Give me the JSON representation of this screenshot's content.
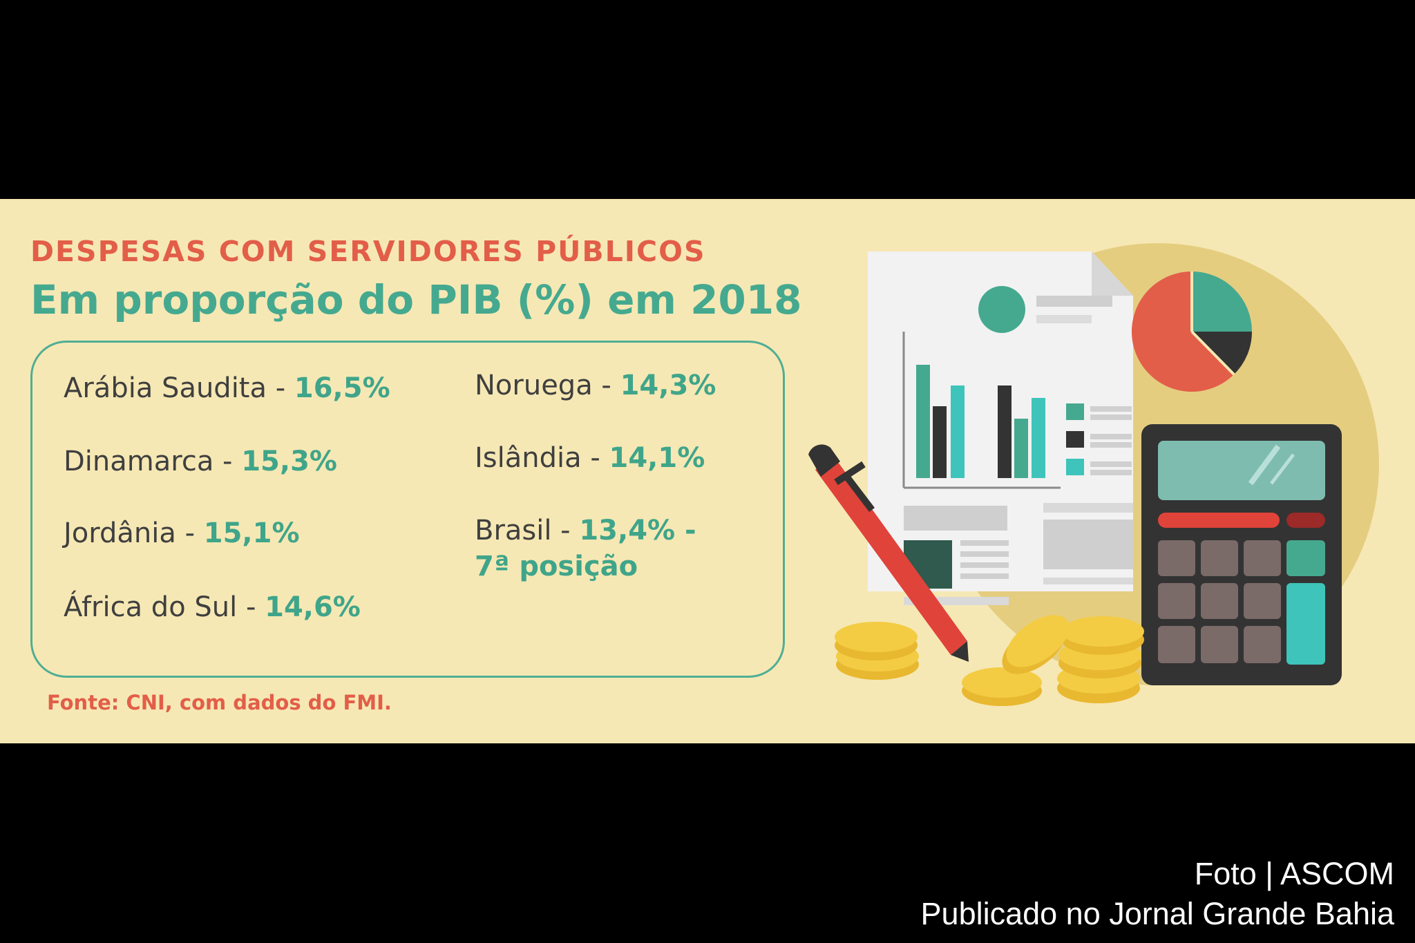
{
  "infographic": {
    "kicker": "DESPESAS COM SERVIDORES PÚBLICOS",
    "headline": "Em proporção do PIB (%) em 2018",
    "source": "Fonte: CNI, com dados do FMI.",
    "entries": [
      {
        "country": "Arábia Saudita",
        "separator": " - ",
        "value": "16,5%"
      },
      {
        "country": "Dinamarca",
        "separator": " - ",
        "value": "15,3%"
      },
      {
        "country": "Jordânia",
        "separator": " - ",
        "value": "15,1%"
      },
      {
        "country": "África do Sul",
        "separator": " - ",
        "value": "14,6%"
      },
      {
        "country": "Noruega",
        "separator": " - ",
        "value": "14,3%"
      },
      {
        "country": "Islândia",
        "separator": " - ",
        "value": "14,1%"
      },
      {
        "country": "Brasil",
        "separator": " - ",
        "value": "13,4% -",
        "value_line2": "7ª posição"
      }
    ]
  },
  "credit": {
    "photo": "Foto | ASCOM",
    "published": "Publicado no Jornal Grande Bahia"
  },
  "colors": {
    "banner_bg": "#f6e8b4",
    "accent_red": "#e25e49",
    "accent_teal": "#45a98f",
    "text_dark": "#3f3f3f"
  },
  "icons": [
    "document-icon",
    "bar-chart-icon",
    "pie-chart-icon",
    "calculator-icon",
    "pen-icon",
    "coins-icon"
  ]
}
